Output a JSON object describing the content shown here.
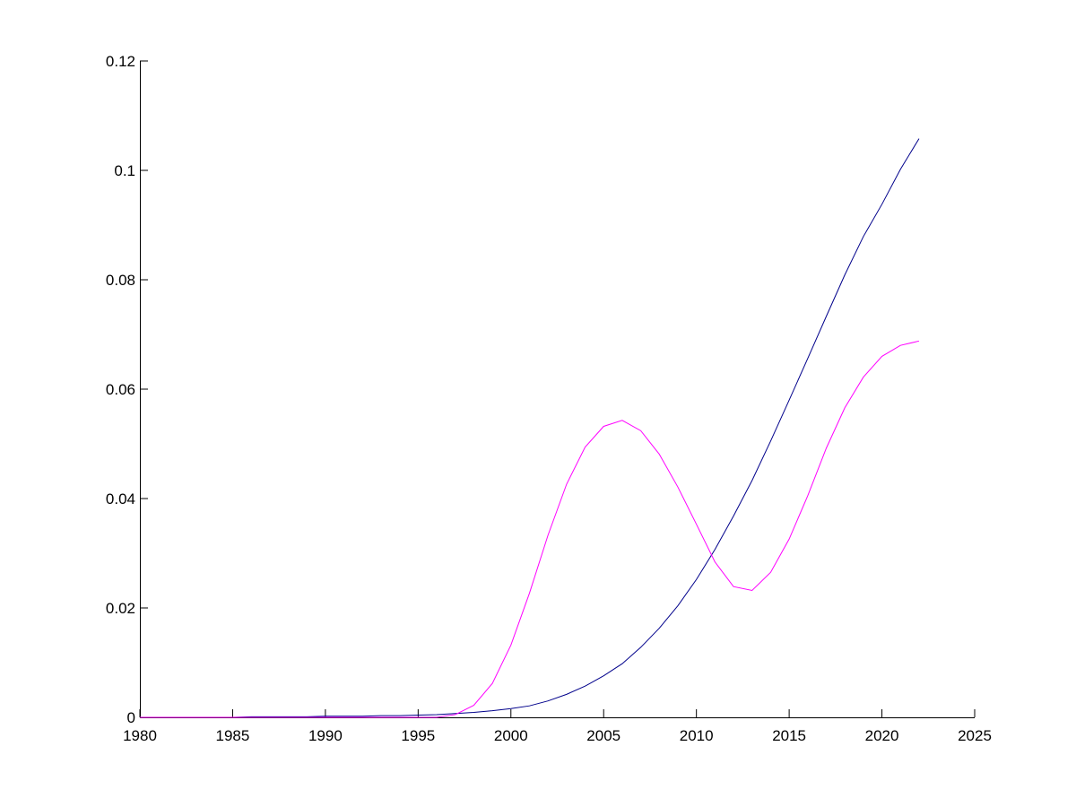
{
  "chart_data": {
    "type": "line",
    "title": "",
    "xlabel": "",
    "ylabel": "",
    "xlim": [
      1980,
      2025
    ],
    "ylim": [
      0,
      0.12
    ],
    "xticks": [
      "1980",
      "1985",
      "1990",
      "1995",
      "2000",
      "2005",
      "2010",
      "2015",
      "2020",
      "2025"
    ],
    "yticks": [
      "0",
      "0.02",
      "0.04",
      "0.06",
      "0.08",
      "0.1",
      "0.12"
    ],
    "grid": false,
    "legend": "none",
    "series": [
      {
        "color": "#00008b",
        "x": [
          1980,
          1981,
          1982,
          1983,
          1984,
          1985,
          1986,
          1987,
          1988,
          1989,
          1990,
          1991,
          1992,
          1993,
          1994,
          1995,
          1996,
          1997,
          1998,
          1999,
          2000,
          2001,
          2002,
          2003,
          2004,
          2005,
          2006,
          2007,
          2008,
          2009,
          2010,
          2011,
          2012,
          2013,
          2014,
          2015,
          2016,
          2017,
          2018,
          2019,
          2020,
          2021,
          2022
        ],
        "y": [
          0,
          0,
          0,
          0,
          0,
          0,
          0.0001,
          0.0001,
          0.0001,
          0.0001,
          0.0002,
          0.0002,
          0.0002,
          0.0003,
          0.0003,
          0.0004,
          0.0005,
          0.0007,
          0.0009,
          0.0012,
          0.0016,
          0.0021,
          0.003,
          0.0042,
          0.0057,
          0.0076,
          0.0098,
          0.0128,
          0.0163,
          0.0204,
          0.0252,
          0.0307,
          0.0368,
          0.0433,
          0.0505,
          0.058,
          0.0656,
          0.0733,
          0.0809,
          0.0879,
          0.0938,
          0.1002,
          0.1058
        ]
      },
      {
        "color": "#ff00ff",
        "x": [
          1980,
          1981,
          1982,
          1983,
          1984,
          1985,
          1986,
          1987,
          1988,
          1989,
          1990,
          1991,
          1992,
          1993,
          1994,
          1995,
          1996,
          1997,
          1998,
          1999,
          2000,
          2001,
          2002,
          2003,
          2004,
          2005,
          2006,
          2007,
          2008,
          2009,
          2010,
          2011,
          2012,
          2013,
          2014,
          2015,
          2016,
          2017,
          2018,
          2019,
          2020,
          2021,
          2022
        ],
        "y": [
          0,
          0,
          0,
          0,
          0,
          0,
          0,
          0,
          0,
          0,
          0,
          0,
          0,
          0,
          0,
          0,
          0,
          0.0005,
          0.0022,
          0.0062,
          0.0132,
          0.0227,
          0.0333,
          0.0426,
          0.0494,
          0.0532,
          0.0543,
          0.0524,
          0.0481,
          0.0421,
          0.0353,
          0.0284,
          0.0239,
          0.0232,
          0.0265,
          0.0326,
          0.0405,
          0.0492,
          0.0566,
          0.0622,
          0.066,
          0.068,
          0.0688
        ]
      }
    ]
  }
}
